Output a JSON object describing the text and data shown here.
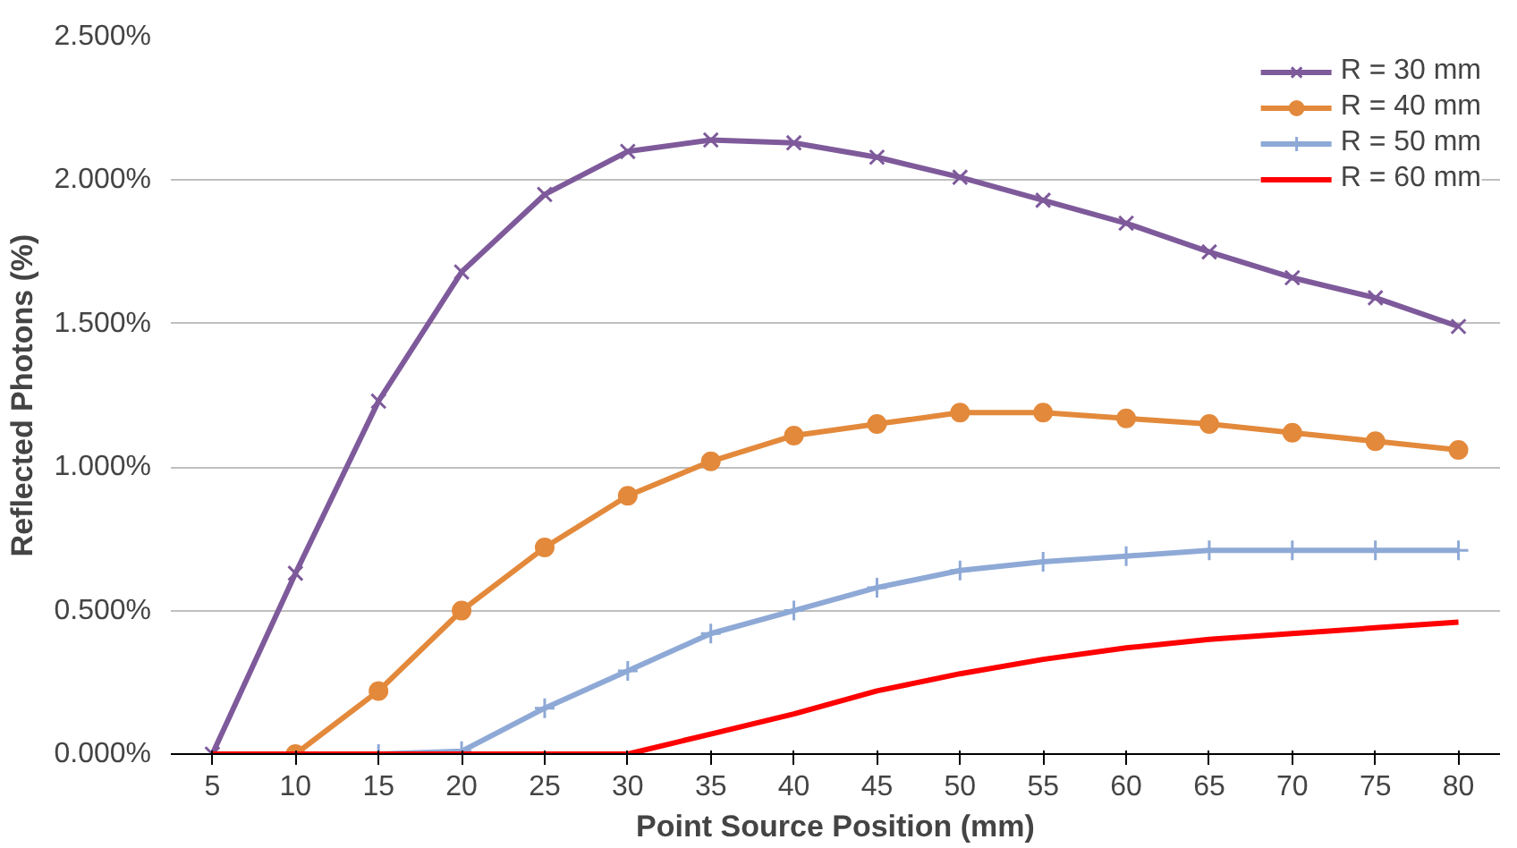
{
  "chart_data": {
    "type": "line",
    "xlabel": "Point Source Position (mm)",
    "ylabel": "Reflected Photons (%)",
    "categories": [
      "5",
      "10",
      "15",
      "20",
      "25",
      "30",
      "35",
      "40",
      "45",
      "50",
      "55",
      "60",
      "65",
      "70",
      "75",
      "80"
    ],
    "series": [
      {
        "name": "R = 30 mm",
        "color": "#7e5a9b",
        "marker": "x",
        "values": [
          0,
          0.63,
          1.23,
          1.68,
          1.95,
          2.1,
          2.14,
          2.13,
          2.08,
          2.01,
          1.93,
          1.85,
          1.75,
          1.66,
          1.59,
          1.49
        ]
      },
      {
        "name": "R = 40 mm",
        "color": "#e3893b",
        "marker": "circle",
        "values": [
          null,
          0,
          0.22,
          0.5,
          0.72,
          0.9,
          1.02,
          1.11,
          1.15,
          1.19,
          1.19,
          1.17,
          1.15,
          1.12,
          1.09,
          1.06
        ]
      },
      {
        "name": "R = 50 mm",
        "color": "#8ea9d6",
        "marker": "cross",
        "values": [
          null,
          null,
          0,
          0.01,
          0.16,
          0.29,
          0.42,
          0.5,
          0.58,
          0.64,
          0.67,
          0.69,
          0.71,
          0.71,
          0.71,
          0.71
        ]
      },
      {
        "name": "R = 60 mm",
        "color": "#ff0000",
        "marker": "none",
        "values": [
          0,
          0,
          0,
          0,
          0,
          0,
          0.07,
          0.14,
          0.22,
          0.28,
          0.33,
          0.37,
          0.4,
          0.42,
          0.44,
          0.46
        ]
      }
    ],
    "ylim": [
      0,
      2.5
    ],
    "yticks": [
      {
        "value": 0,
        "label": "0.000%"
      },
      {
        "value": 0.5,
        "label": "0.500%"
      },
      {
        "value": 1,
        "label": "1.000%"
      },
      {
        "value": 1.5,
        "label": "1.500%"
      },
      {
        "value": 2,
        "label": "2.000%"
      },
      {
        "value": 2.5,
        "label": "2.500%"
      }
    ],
    "grid": "y",
    "legend": "top right",
    "line_style": "solid"
  }
}
